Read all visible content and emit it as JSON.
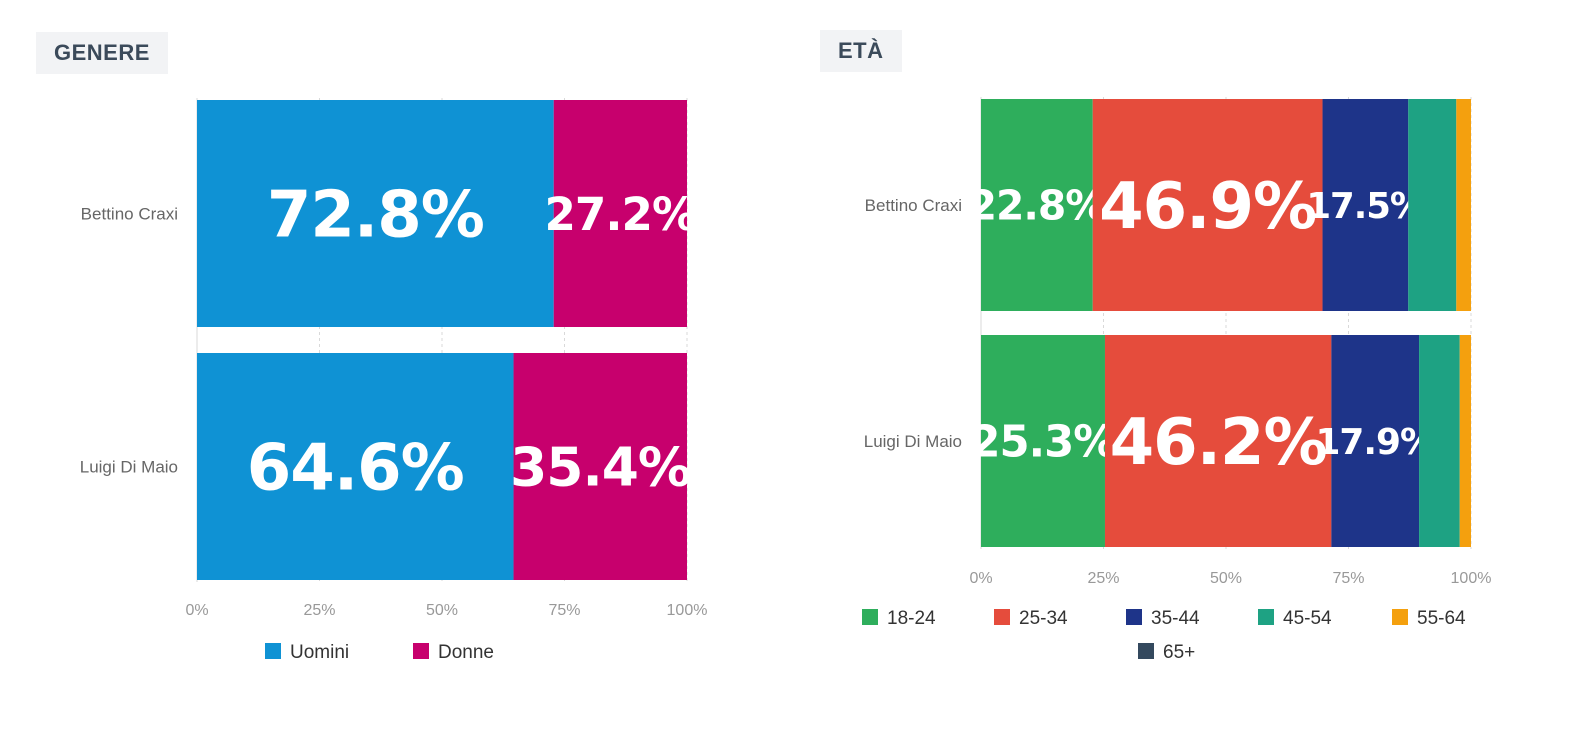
{
  "chart_data": [
    {
      "type": "bar",
      "orientation": "horizontal",
      "stacked": true,
      "title": "GENERE",
      "categories": [
        "Bettino Craxi",
        "Luigi Di Maio"
      ],
      "series": [
        {
          "name": "Uomini",
          "values": [
            72.8,
            64.6
          ],
          "color": "#0f92d4",
          "labels": [
            "72.8%",
            "64.6%"
          ]
        },
        {
          "name": "Donne",
          "values": [
            27.2,
            35.4
          ],
          "color": "#c7006d",
          "labels": [
            "27.2%",
            "35.4%"
          ]
        }
      ],
      "xlim": [
        0,
        100
      ],
      "x_ticks": [
        "0%",
        "25%",
        "50%",
        "75%",
        "100%"
      ],
      "grid": true,
      "legend_position": "bottom"
    },
    {
      "type": "bar",
      "orientation": "horizontal",
      "stacked": true,
      "title": "ETÀ",
      "categories": [
        "Bettino Craxi",
        "Luigi Di Maio"
      ],
      "series": [
        {
          "name": "18-24",
          "values": [
            22.8,
            25.3
          ],
          "color": "#2eae5c",
          "labels": [
            "22.8%",
            "25.3%"
          ]
        },
        {
          "name": "25-34",
          "values": [
            46.9,
            46.2
          ],
          "color": "#e54c3c",
          "labels": [
            "46.9%",
            "46.2%"
          ]
        },
        {
          "name": "35-44",
          "values": [
            17.5,
            17.9
          ],
          "color": "#1e3489",
          "labels": [
            "17.5%",
            "17.9%"
          ]
        },
        {
          "name": "45-54",
          "values": [
            9.8,
            8.3
          ],
          "color": "#1ea283",
          "labels": [
            "",
            ""
          ]
        },
        {
          "name": "55-64",
          "values": [
            3.0,
            2.3
          ],
          "color": "#f4a00e",
          "labels": [
            "",
            ""
          ]
        },
        {
          "name": "65+",
          "values": [
            0.0,
            0.0
          ],
          "color": "#34495e",
          "labels": [
            "",
            ""
          ]
        }
      ],
      "xlim": [
        0,
        100
      ],
      "x_ticks": [
        "0%",
        "25%",
        "50%",
        "75%",
        "100%"
      ],
      "grid": true,
      "legend_position": "bottom"
    }
  ]
}
